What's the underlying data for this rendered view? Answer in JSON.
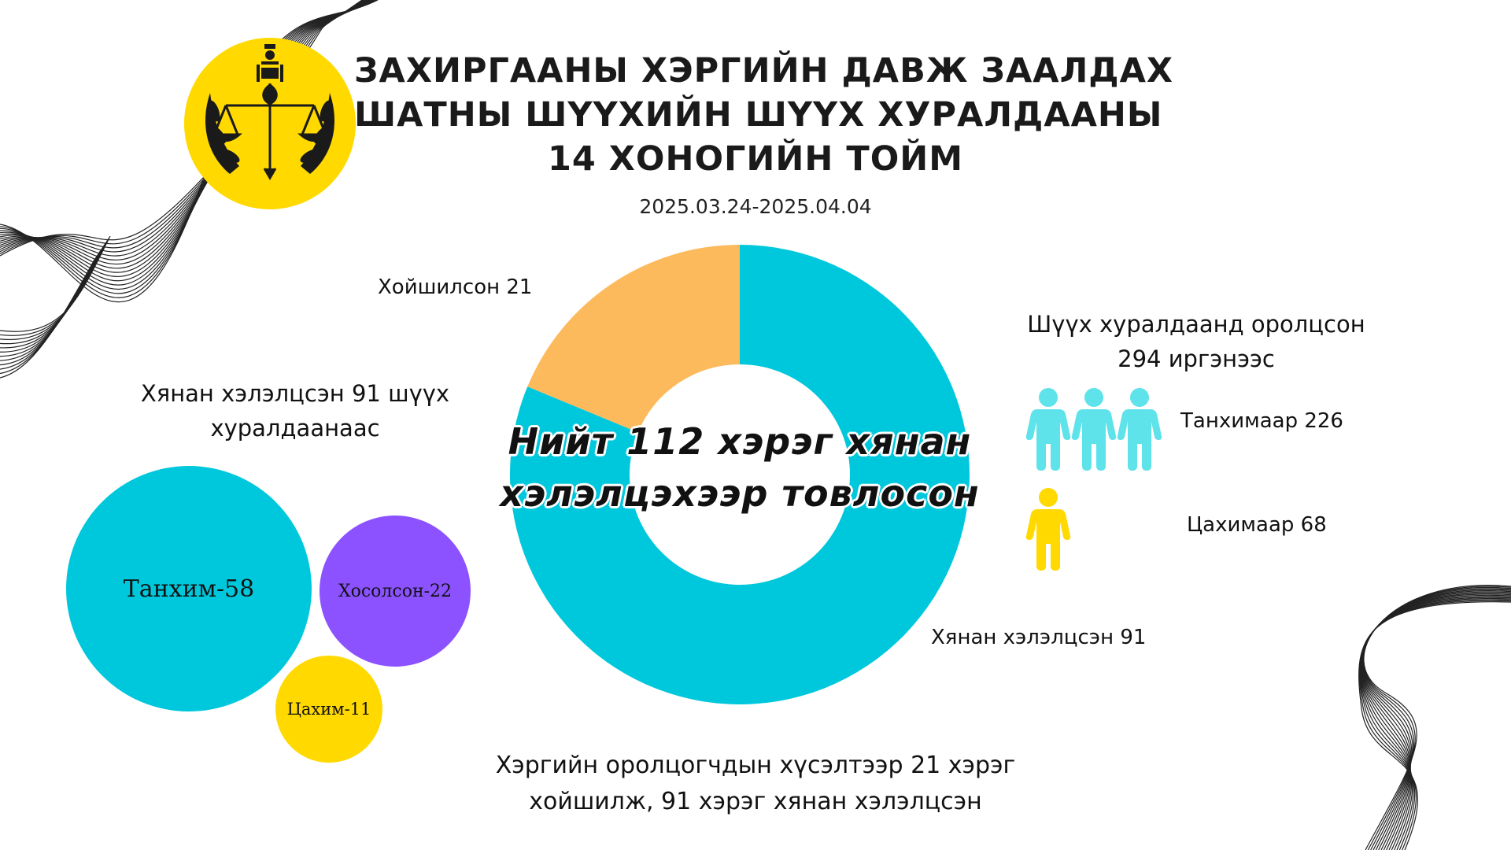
{
  "title_lines": [
    "ЗАХИРГААНЫ ХЭРГИЙН ДАВЖ ЗААЛДАХ",
    "ШАТНЫ ШҮҮХИЙН ШҮҮХ ХУРАЛДААНЫ",
    "14 ХОНОГИЙН ТОЙМ"
  ],
  "date_range": "2025.03.24-2025.04.04",
  "logo": {
    "name": "court-emblem",
    "background": "#ffd900"
  },
  "colors": {
    "cyan": "#00c8dc",
    "orange": "#fdba5c",
    "purple": "#8c52ff",
    "yellow": "#ffd900",
    "light_cyan": "#5ee3ea"
  },
  "center_text": [
    "Нийт 112 хэрэг хянан",
    "хэлэлцэхээр товлосон"
  ],
  "bottom_text": [
    "Хэргийн оролцогчдын хүсэлтээр 21 хэрэг",
    "хойшилж, 91 хэрэг хянан хэлэлцсэн"
  ],
  "chart_data": [
    {
      "type": "pie",
      "donut": true,
      "total": 112,
      "slices": [
        {
          "label": "Хойшилсон 21",
          "value": 21,
          "color": "#fdba5c"
        },
        {
          "label": "Хянан хэлэлцсэн 91",
          "value": 91,
          "color": "#00c8dc"
        }
      ]
    },
    {
      "type": "bubble",
      "heading": [
        "Хянан хэлэлцсэн 91 шүүх",
        "хуралдаанаас"
      ],
      "items": [
        {
          "label": "Танхим-58",
          "value": 58,
          "color": "#00c8dc"
        },
        {
          "label": "Хосолсон-22",
          "value": 22,
          "color": "#8c52ff"
        },
        {
          "label": "Цахим-11",
          "value": 11,
          "color": "#ffd900"
        }
      ]
    },
    {
      "type": "pictograph",
      "heading": [
        "Шүүх хуралдаанд оролцсон",
        "294 иргэнээс"
      ],
      "items": [
        {
          "label": "Танхимаар 226",
          "value": 226,
          "icons": 3,
          "color": "#5ee3ea"
        },
        {
          "label": "Цахимаар 68",
          "value": 68,
          "icons": 1,
          "color": "#ffd900"
        }
      ]
    }
  ]
}
